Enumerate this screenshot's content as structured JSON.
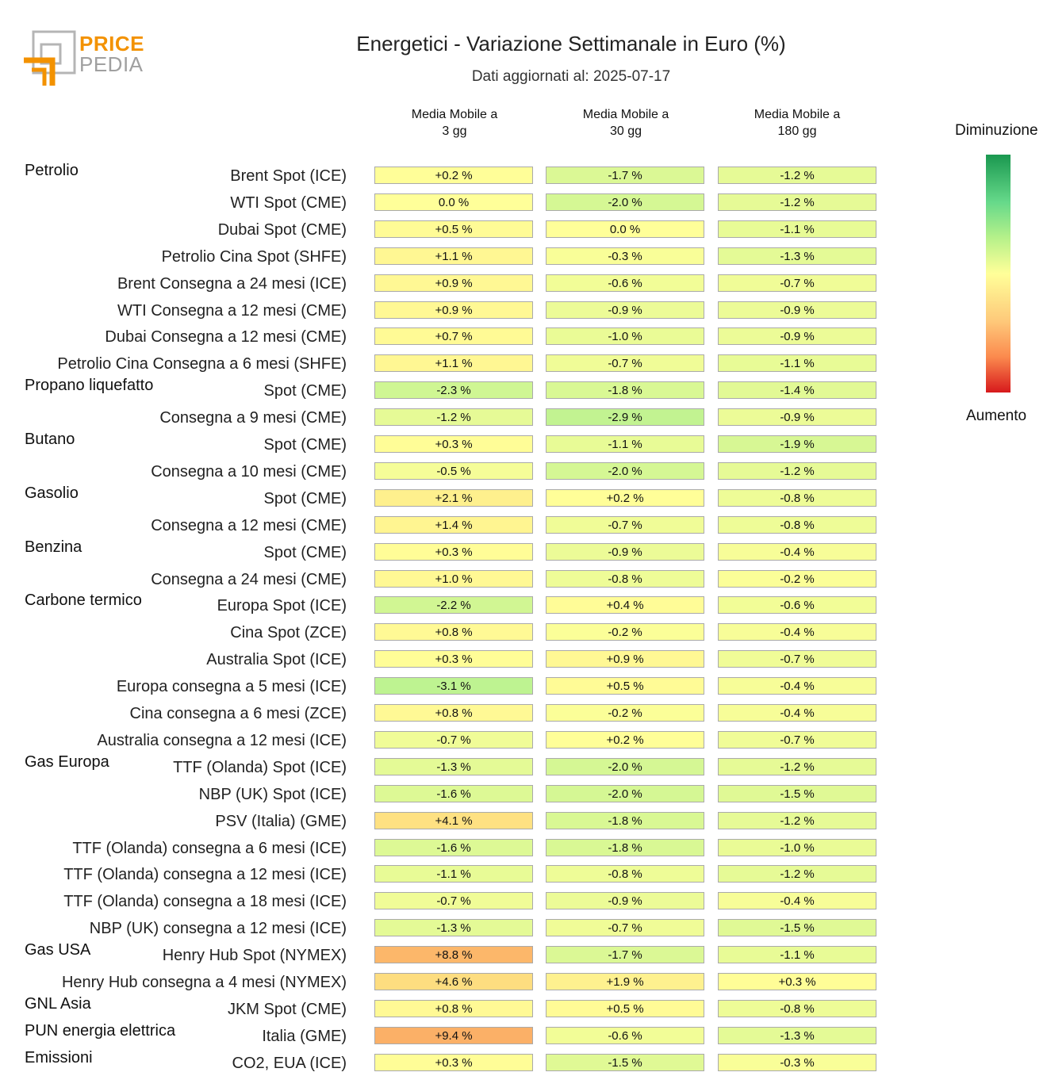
{
  "logo": {
    "line1": "PRICE",
    "line2": "PEDIA"
  },
  "title": "Energetici - Variazione Settimanale in Euro (%)",
  "subtitle": "Dati aggiornati al: 2025-07-17",
  "columns": [
    "Media Mobile a\n3 gg",
    "Media Mobile a\n30 gg",
    "Media Mobile a\n180 gg"
  ],
  "legend": {
    "top": "Diminuzione",
    "bottom": "Aumento"
  },
  "colors": {
    "max_decrease": "#1a9850",
    "neutral": "#ffff99",
    "max_increase": "#d7191c"
  },
  "chart_data": {
    "type": "heatmap",
    "unit": "%",
    "groups": [
      {
        "name": "Petrolio",
        "rows": [
          {
            "label": "Brent Spot (ICE)",
            "values": [
              0.2,
              -1.7,
              -1.2
            ]
          },
          {
            "label": "WTI Spot (CME)",
            "values": [
              0.0,
              -2.0,
              -1.2
            ]
          },
          {
            "label": "Dubai Spot (CME)",
            "values": [
              0.5,
              0.0,
              -1.1
            ]
          },
          {
            "label": "Petrolio Cina Spot (SHFE)",
            "values": [
              1.1,
              -0.3,
              -1.3
            ]
          },
          {
            "label": "Brent Consegna a 24 mesi (ICE)",
            "values": [
              0.9,
              -0.6,
              -0.7
            ]
          },
          {
            "label": "WTI Consegna a 12 mesi (CME)",
            "values": [
              0.9,
              -0.9,
              -0.9
            ]
          },
          {
            "label": "Dubai Consegna a 12 mesi (CME)",
            "values": [
              0.7,
              -1.0,
              -0.9
            ]
          },
          {
            "label": "Petrolio Cina Consegna a 6 mesi (SHFE)",
            "values": [
              1.1,
              -0.7,
              -1.1
            ]
          }
        ]
      },
      {
        "name": "Propano liquefatto",
        "rows": [
          {
            "label": "Spot (CME)",
            "values": [
              -2.3,
              -1.8,
              -1.4
            ]
          },
          {
            "label": "Consegna a 9 mesi (CME)",
            "values": [
              -1.2,
              -2.9,
              -0.9
            ]
          }
        ]
      },
      {
        "name": "Butano",
        "rows": [
          {
            "label": "Spot (CME)",
            "values": [
              0.3,
              -1.1,
              -1.9
            ]
          },
          {
            "label": "Consegna a 10 mesi (CME)",
            "values": [
              -0.5,
              -2.0,
              -1.2
            ]
          }
        ]
      },
      {
        "name": "Gasolio",
        "rows": [
          {
            "label": "Spot (CME)",
            "values": [
              2.1,
              0.2,
              -0.8
            ]
          },
          {
            "label": "Consegna a 12 mesi (CME)",
            "values": [
              1.4,
              -0.7,
              -0.8
            ]
          }
        ]
      },
      {
        "name": "Benzina",
        "rows": [
          {
            "label": "Spot (CME)",
            "values": [
              0.3,
              -0.9,
              -0.4
            ]
          },
          {
            "label": "Consegna a 24 mesi (CME)",
            "values": [
              1.0,
              -0.8,
              -0.2
            ]
          }
        ]
      },
      {
        "name": "Carbone termico",
        "rows": [
          {
            "label": "Europa Spot (ICE)",
            "values": [
              -2.2,
              0.4,
              -0.6
            ]
          },
          {
            "label": "Cina Spot (ZCE)",
            "values": [
              0.8,
              -0.2,
              -0.4
            ]
          },
          {
            "label": "Australia Spot (ICE)",
            "values": [
              0.3,
              0.9,
              -0.7
            ]
          },
          {
            "label": "Europa consegna a 5 mesi (ICE)",
            "values": [
              -3.1,
              0.5,
              -0.4
            ]
          },
          {
            "label": "Cina consegna a 6 mesi (ZCE)",
            "values": [
              0.8,
              -0.2,
              -0.4
            ]
          },
          {
            "label": "Australia consegna a 12 mesi (ICE)",
            "values": [
              -0.7,
              0.2,
              -0.7
            ]
          }
        ]
      },
      {
        "name": "Gas Europa",
        "rows": [
          {
            "label": "TTF (Olanda) Spot (ICE)",
            "values": [
              -1.3,
              -2.0,
              -1.2
            ]
          },
          {
            "label": "NBP (UK) Spot (ICE)",
            "values": [
              -1.6,
              -2.0,
              -1.5
            ]
          },
          {
            "label": "PSV (Italia) (GME)",
            "values": [
              4.1,
              -1.8,
              -1.2
            ]
          },
          {
            "label": "TTF (Olanda) consegna a 6 mesi (ICE)",
            "values": [
              -1.6,
              -1.8,
              -1.0
            ]
          },
          {
            "label": "TTF (Olanda) consegna a 12 mesi (ICE)",
            "values": [
              -1.1,
              -0.8,
              -1.2
            ]
          },
          {
            "label": "TTF (Olanda) consegna a 18 mesi (ICE)",
            "values": [
              -0.7,
              -0.9,
              -0.4
            ]
          },
          {
            "label": "NBP (UK) consegna a 12 mesi (ICE)",
            "values": [
              -1.3,
              -0.7,
              -1.5
            ]
          }
        ]
      },
      {
        "name": "Gas USA",
        "rows": [
          {
            "label": "Henry Hub Spot (NYMEX)",
            "values": [
              8.8,
              -1.7,
              -1.1
            ]
          },
          {
            "label": "Henry Hub consegna a 4 mesi (NYMEX)",
            "values": [
              4.6,
              1.9,
              0.3
            ]
          }
        ]
      },
      {
        "name": "GNL Asia",
        "rows": [
          {
            "label": "JKM Spot (CME)",
            "values": [
              0.8,
              0.5,
              -0.8
            ]
          }
        ]
      },
      {
        "name": "PUN energia elettrica",
        "rows": [
          {
            "label": "Italia (GME)",
            "values": [
              9.4,
              -0.6,
              -1.3
            ]
          }
        ]
      },
      {
        "name": "Emissioni",
        "rows": [
          {
            "label": "CO2, EUA (ICE)",
            "values": [
              0.3,
              -1.5,
              -0.3
            ]
          }
        ]
      }
    ]
  }
}
